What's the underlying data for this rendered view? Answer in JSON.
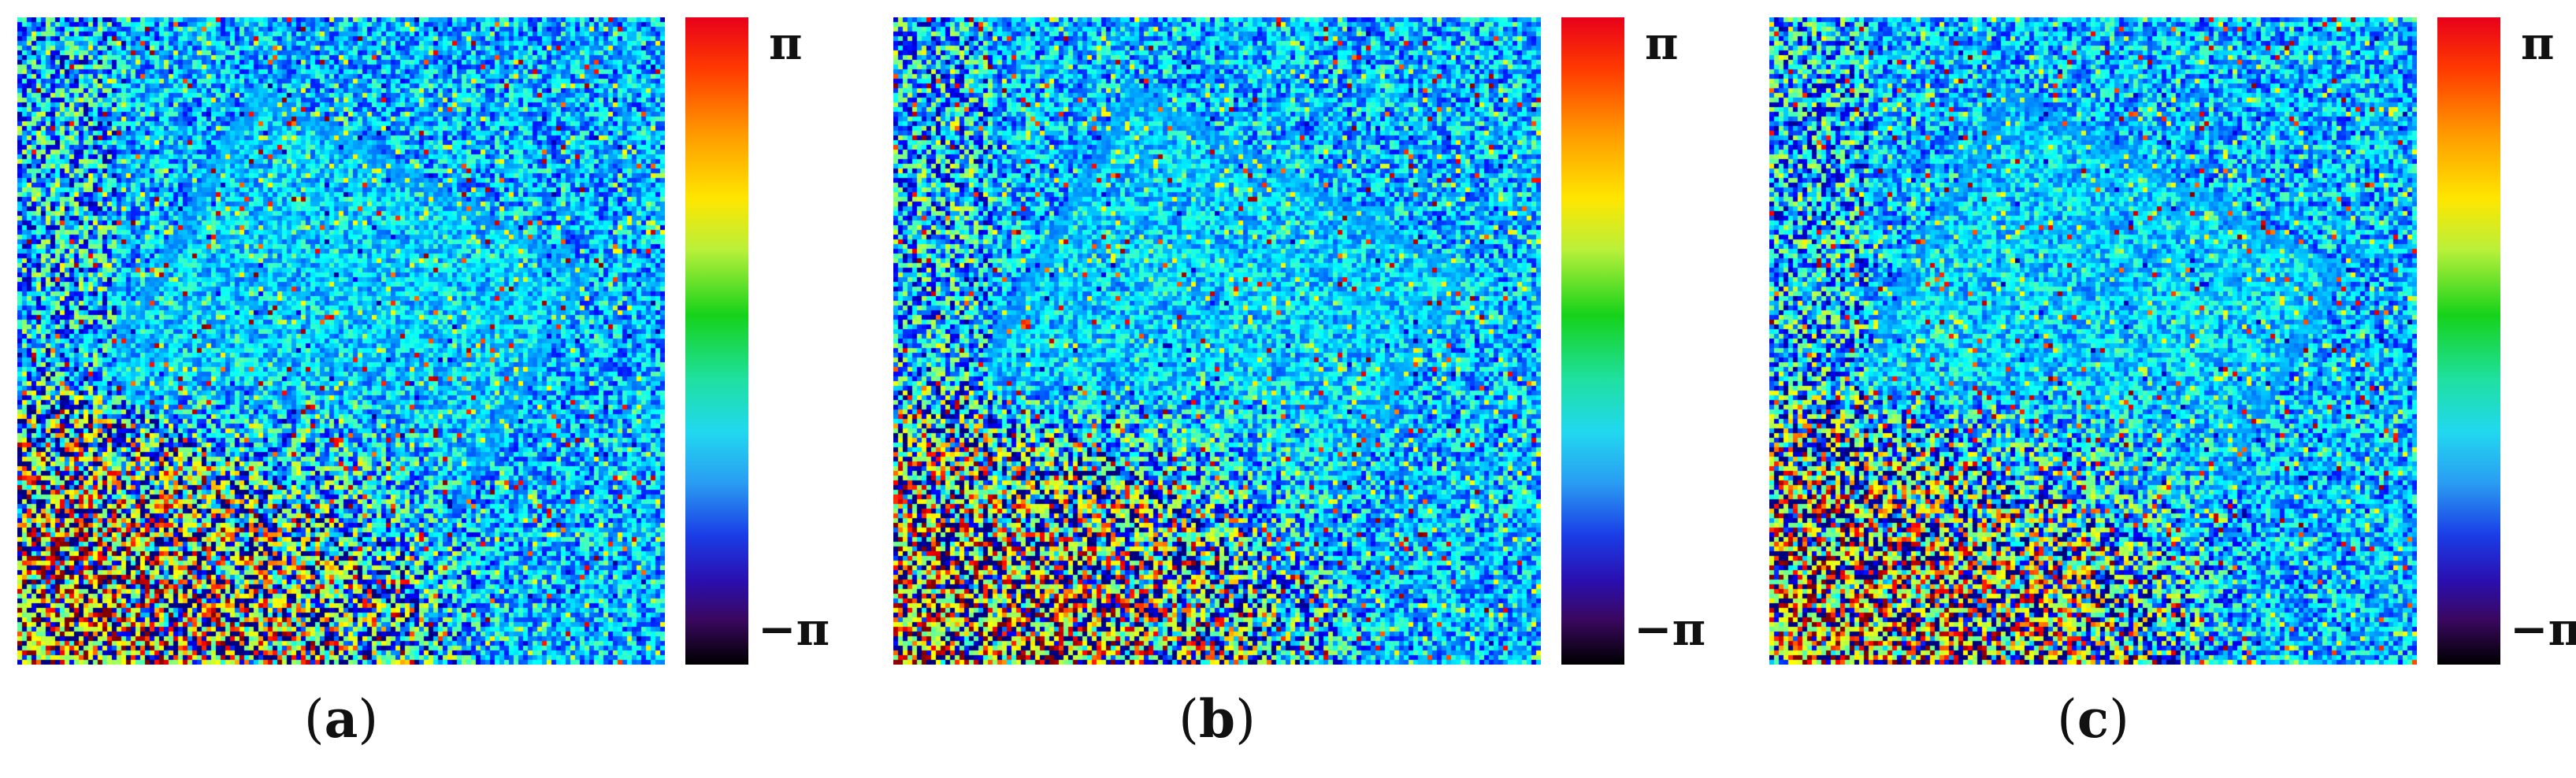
{
  "panels": [
    {
      "id": "a",
      "caption_open": "(",
      "caption_letter": "a",
      "caption_close": ")",
      "colorbar_max": "π",
      "colorbar_min": "−π"
    },
    {
      "id": "b",
      "caption_open": "(",
      "caption_letter": "b",
      "caption_close": ")",
      "colorbar_max": "π",
      "colorbar_min": "−π"
    },
    {
      "id": "c",
      "caption_open": "(",
      "caption_letter": "c",
      "caption_close": ")",
      "colorbar_max": "π",
      "colorbar_min": "−π"
    }
  ],
  "colors": {
    "background": "#ffffff",
    "dominant_phase": "#2a5fe0",
    "colormap": "jet"
  }
}
